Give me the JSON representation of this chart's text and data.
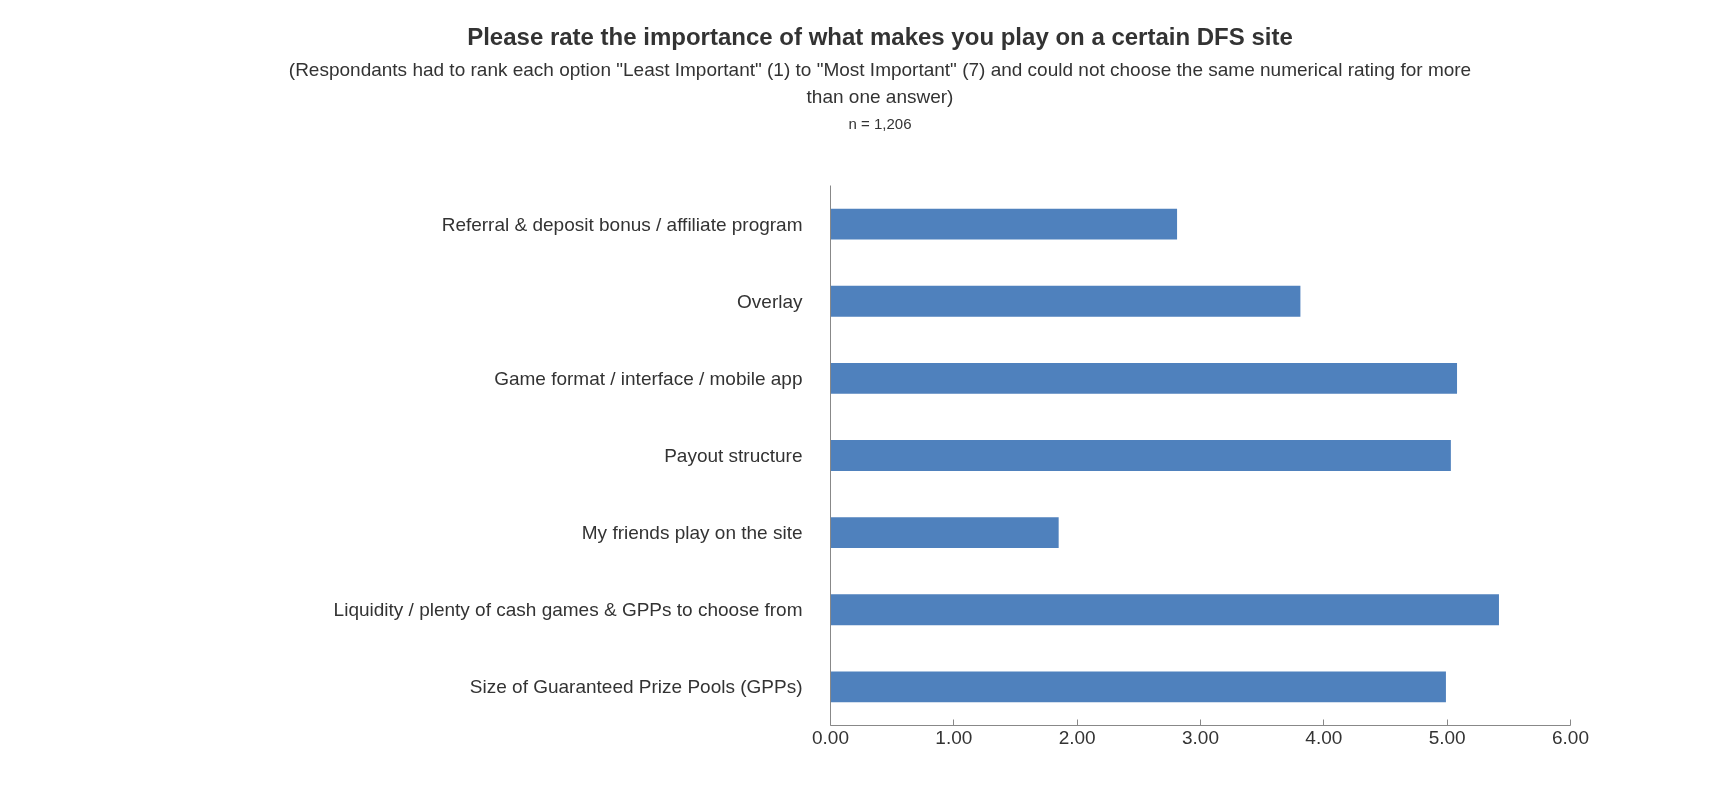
{
  "chart_data": {
    "type": "bar",
    "orientation": "horizontal",
    "title": "Please rate the importance of what makes you play on a certain DFS site",
    "subtitle": "(Respondants  had to rank each option \"Least Important\" (1) to \"Most Important\" (7) and could not choose the same numerical rating for more than one answer)",
    "annotations": [
      "n = 1,206"
    ],
    "categories": [
      "Referral & deposit bonus / affiliate program",
      "Overlay",
      "Game format / interface / mobile app",
      "Payout structure",
      "My friends play on the site",
      "Liquidity / plenty of cash games & GPPs to choose from",
      "Size of Guaranteed Prize Pools (GPPs)"
    ],
    "values": [
      2.81,
      3.81,
      5.08,
      5.03,
      1.85,
      5.42,
      4.99
    ],
    "color": "#4f81bd",
    "xlim": [
      0,
      6
    ],
    "xticks": [
      {
        "value": 0,
        "label": "0.00"
      },
      {
        "value": 1,
        "label": "1.00"
      },
      {
        "value": 2,
        "label": "2.00"
      },
      {
        "value": 3,
        "label": "3.00"
      },
      {
        "value": 4,
        "label": "4.00"
      },
      {
        "value": 5,
        "label": "5.00"
      },
      {
        "value": 6,
        "label": "6.00"
      }
    ],
    "grid": false
  }
}
